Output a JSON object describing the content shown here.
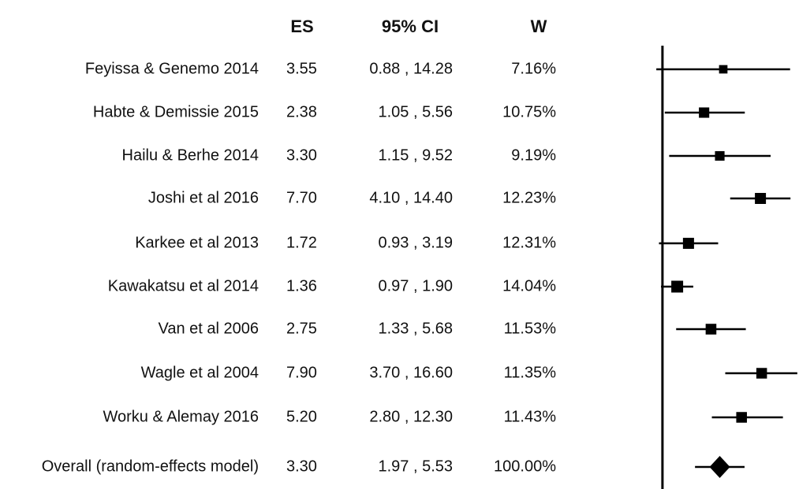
{
  "chart_data": {
    "type": "forest",
    "columns": [
      "ES",
      "95% CI",
      "W"
    ],
    "categories": [
      "Feyissa & Genemo 2014",
      "Habte & Demissie 2015",
      "Hailu & Berhe 2014",
      "Joshi et al 2016",
      "Karkee et al 2013",
      "Kawakatsu et al 2014",
      "Van et al 2006",
      "Wagle et al 2004",
      "Worku & Alemay 2016"
    ],
    "values": [
      3.55,
      2.38,
      3.3,
      7.7,
      1.72,
      1.36,
      2.75,
      7.9,
      5.2
    ],
    "value_labels": [
      "3.55",
      "2.38",
      "3.30",
      "7.70",
      "1.72",
      "1.36",
      "2.75",
      "7.90",
      "5.20"
    ],
    "lower": [
      0.88,
      1.05,
      1.15,
      4.1,
      0.93,
      0.97,
      1.33,
      3.7,
      2.8
    ],
    "upper": [
      14.28,
      5.56,
      9.52,
      14.4,
      3.19,
      1.9,
      5.68,
      16.6,
      12.3
    ],
    "ci_labels": [
      "0.88 , 14.28",
      "1.05 , 5.56",
      "1.15 , 9.52",
      "4.10 , 14.40",
      "0.93 , 3.19",
      "0.97 , 1.90",
      "1.33 , 5.68",
      "3.70 , 16.60",
      "2.80 , 12.30"
    ],
    "weights": [
      7.16,
      10.75,
      9.19,
      12.23,
      12.31,
      14.04,
      11.53,
      11.35,
      11.43
    ],
    "weight_labels": [
      "7.16%",
      "10.75%",
      "9.19%",
      "12.23%",
      "12.31%",
      "14.04%",
      "11.53%",
      "11.35%",
      "11.43%"
    ],
    "overall": {
      "name": "Overall (random-effects model)",
      "value": 3.3,
      "value_label": "3.30",
      "lower": 1.97,
      "upper": 5.53,
      "ci_label": "1.97 , 5.53",
      "weight": 100.0,
      "weight_label": "100.00%"
    },
    "xscale": "log",
    "xlim": [
      0.85,
      17.2
    ],
    "reference_line": 1,
    "color": "#000000"
  }
}
